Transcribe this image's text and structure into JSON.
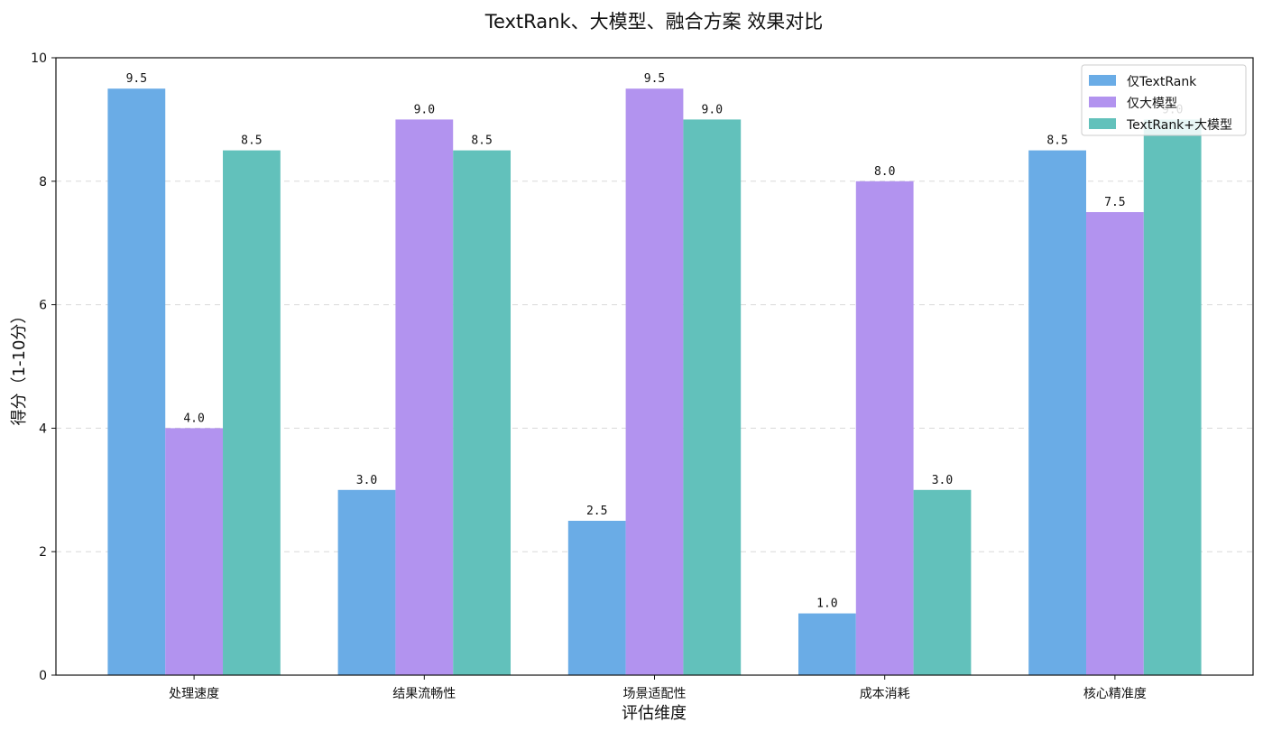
{
  "chart_data": {
    "type": "bar",
    "title": "TextRank、大模型、融合方案 效果对比",
    "xlabel": "评估维度",
    "ylabel": "得分（1-10分）",
    "ylim": [
      0,
      10
    ],
    "yticks": [
      0,
      2,
      4,
      6,
      8,
      10
    ],
    "grid": "horizontal-dashed",
    "legend_position": "top-right",
    "categories": [
      "处理速度",
      "结果流畅性",
      "场景适配性",
      "成本消耗",
      "核心精准度"
    ],
    "series": [
      {
        "name": "仅TextRank",
        "color": "#6aace6",
        "values": [
          9.5,
          3.0,
          2.5,
          1.0,
          8.5
        ],
        "labels": [
          "9.5",
          "3.0",
          "2.5",
          "1.0",
          "8.5"
        ]
      },
      {
        "name": "仅大模型",
        "color": "#b293ef",
        "values": [
          4.0,
          9.0,
          9.5,
          8.0,
          7.5
        ],
        "labels": [
          "4.0",
          "9.0",
          "9.5",
          "8.0",
          "7.5"
        ]
      },
      {
        "name": "TextRank+大模型",
        "color": "#62c1bb",
        "values": [
          8.5,
          8.5,
          9.0,
          3.0,
          9.0
        ],
        "labels": [
          "8.5",
          "8.5",
          "9.0",
          "3.0",
          "9.0"
        ]
      }
    ]
  }
}
